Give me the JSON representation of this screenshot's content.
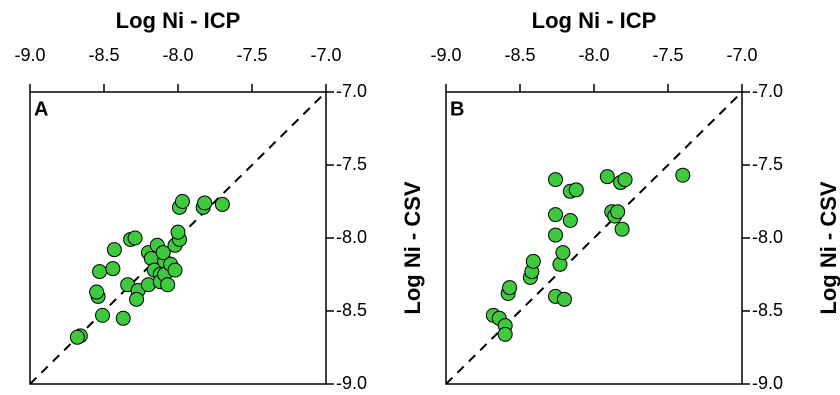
{
  "chart_data": [
    {
      "type": "scatter",
      "title": "A",
      "xlabel": "Log Ni - ICP",
      "ylabel": "Log Ni - CSV",
      "color": "#3ec93e",
      "xlim": [
        -9,
        -7
      ],
      "ylim": [
        -9,
        -7
      ],
      "xticks": [
        {
          "value": -9,
          "label": "-9.0"
        },
        {
          "value": -8.5,
          "label": "-8.5"
        },
        {
          "value": -8,
          "label": "-8.0"
        },
        {
          "value": -7.5,
          "label": "-7.5"
        },
        {
          "value": -7,
          "label": "-7.0"
        }
      ],
      "yticks": [
        {
          "value": -7,
          "label": "-7.0"
        },
        {
          "value": -7.5,
          "label": "-7.5"
        },
        {
          "value": -8,
          "label": "-8.0"
        },
        {
          "value": -8.5,
          "label": "-8.5"
        },
        {
          "value": -9,
          "label": "-9.0"
        }
      ],
      "x": [
        -8.66,
        -8.68,
        -8.51,
        -8.54,
        -8.55,
        -8.53,
        -8.44,
        -8.43,
        -8.37,
        -8.32,
        -8.29,
        -8.34,
        -8.27,
        -8.28,
        -8.2,
        -8.2,
        -8.18,
        -8.16,
        -8.14,
        -8.09,
        -8.1,
        -8.12,
        -8.12,
        -8.09,
        -8.05,
        -8.02,
        -8.07,
        -8.02,
        -7.99,
        -8.0,
        -7.99,
        -7.97,
        -7.83,
        -7.82,
        -7.7
      ],
      "values": [
        -8.67,
        -8.68,
        -8.53,
        -8.4,
        -8.37,
        -8.23,
        -8.21,
        -8.08,
        -8.55,
        -8.01,
        -8.0,
        -8.32,
        -8.36,
        -8.42,
        -8.32,
        -8.1,
        -8.14,
        -8.22,
        -8.05,
        -8.16,
        -8.1,
        -8.25,
        -8.3,
        -8.25,
        -8.18,
        -8.22,
        -8.32,
        -8.05,
        -8.01,
        -7.96,
        -7.79,
        -7.75,
        -7.79,
        -7.76,
        -7.77
      ]
    },
    {
      "type": "scatter",
      "title": "B",
      "xlabel": "Log Ni - ICP",
      "ylabel": "Log Ni - CSV",
      "color": "#3ec93e",
      "xlim": [
        -9,
        -7
      ],
      "ylim": [
        -9,
        -7
      ],
      "xticks": [
        {
          "value": -9,
          "label": "-9.0"
        },
        {
          "value": -8.5,
          "label": "-8.5"
        },
        {
          "value": -8,
          "label": "-8.0"
        },
        {
          "value": -7.5,
          "label": "-7.5"
        },
        {
          "value": -7,
          "label": "-7.0"
        }
      ],
      "yticks": [
        {
          "value": -7,
          "label": "-7.0"
        },
        {
          "value": -7.5,
          "label": "-7.5"
        },
        {
          "value": -8,
          "label": "-8.0"
        },
        {
          "value": -8.5,
          "label": "-8.5"
        },
        {
          "value": -9,
          "label": "-9.0"
        }
      ],
      "x": [
        -8.68,
        -8.64,
        -8.6,
        -8.6,
        -8.58,
        -8.57,
        -8.43,
        -8.42,
        -8.41,
        -8.26,
        -8.2,
        -8.26,
        -8.26,
        -8.26,
        -8.23,
        -8.21,
        -8.16,
        -8.16,
        -8.12,
        -7.91,
        -7.88,
        -7.86,
        -7.84,
        -7.82,
        -7.79,
        -7.81,
        -7.4
      ],
      "values": [
        -8.53,
        -8.55,
        -8.6,
        -8.66,
        -8.38,
        -8.34,
        -8.27,
        -8.23,
        -8.16,
        -8.4,
        -8.42,
        -7.98,
        -7.84,
        -7.6,
        -8.18,
        -8.1,
        -7.88,
        -7.68,
        -7.67,
        -7.58,
        -7.82,
        -7.85,
        -7.82,
        -7.62,
        -7.6,
        -7.94,
        -7.57
      ]
    }
  ]
}
